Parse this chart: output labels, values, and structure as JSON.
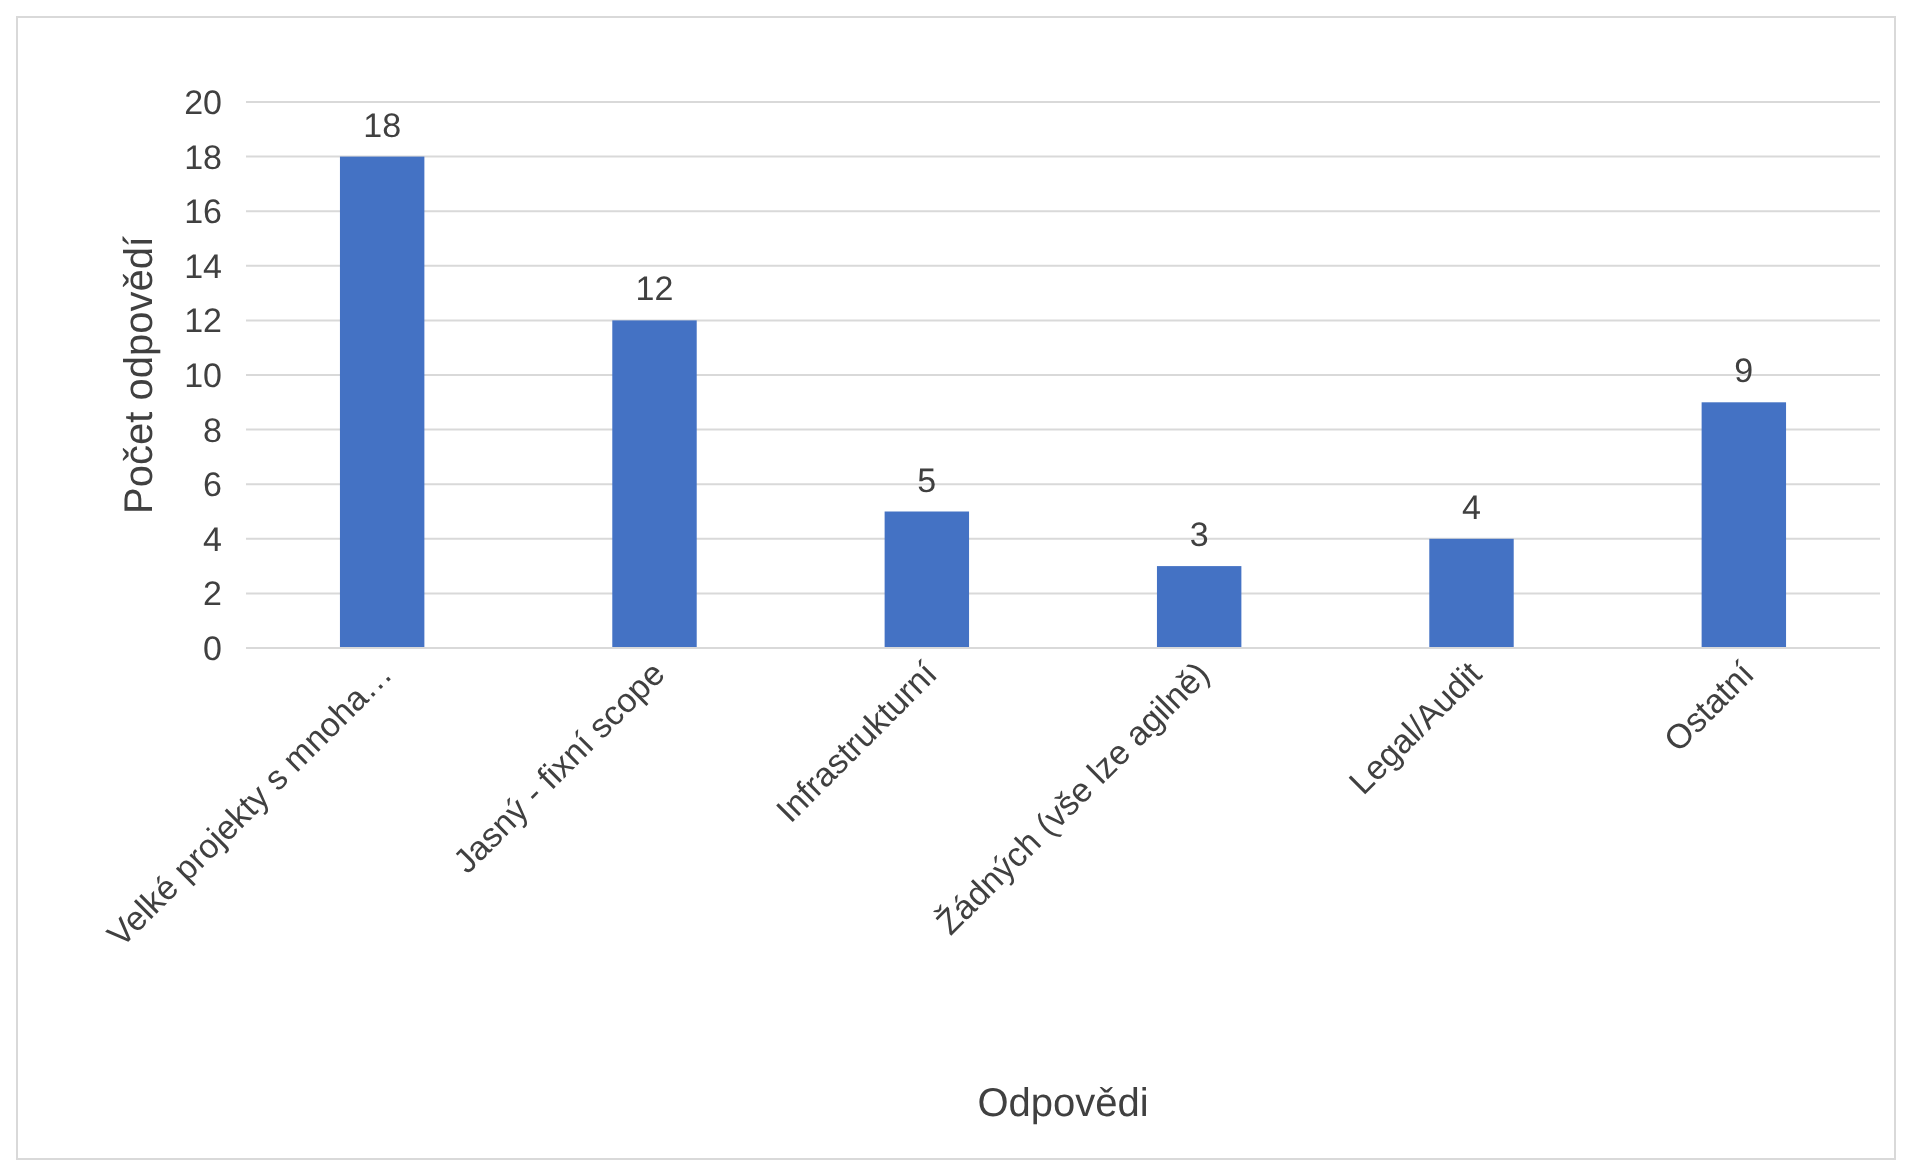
{
  "chart_data": {
    "type": "bar",
    "xlabel": "Odpovědi",
    "ylabel": "Počet odpovědí",
    "categories": [
      "Velké projekty s mnoha…",
      "Jasný - fixní scope",
      "Infrastrukturní",
      "Žádných (vše lze agilně)",
      "Legal/Audit",
      "Ostatní"
    ],
    "values": [
      18,
      12,
      5,
      3,
      4,
      9
    ],
    "color": "#4472c4",
    "ylim": [
      0,
      20
    ],
    "yticks": [
      0,
      2,
      4,
      6,
      8,
      10,
      12,
      14,
      16,
      18,
      20
    ],
    "grid": "y",
    "data_labels": true
  }
}
